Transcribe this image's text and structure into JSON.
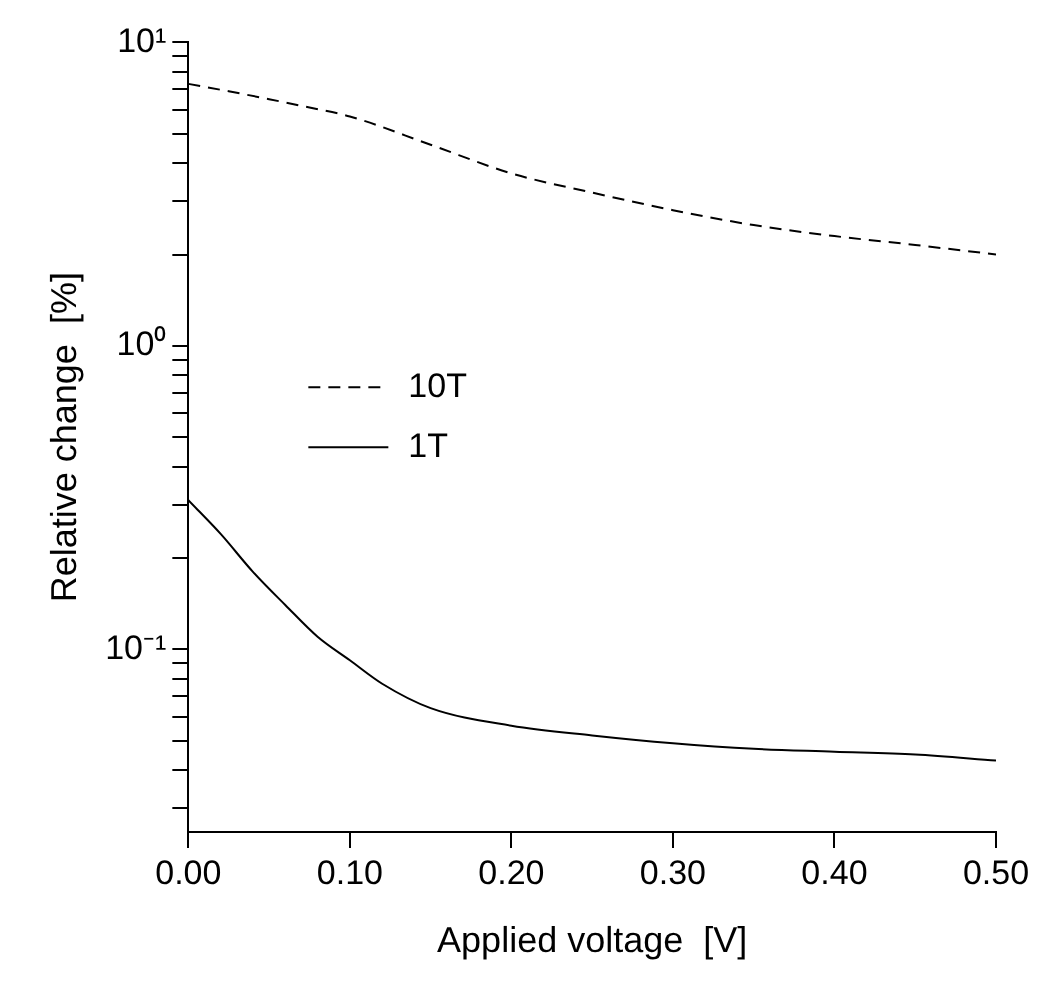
{
  "chart_data": {
    "type": "line",
    "xlabel": "Applied voltage  [V]",
    "ylabel": "Relative change  [%]",
    "log": "y",
    "grid": false,
    "legend": "left",
    "marker": "none",
    "xlim": [
      0,
      0.5
    ],
    "xticks": [
      {
        "value": 0,
        "label": "0.00"
      },
      {
        "value": 0.1,
        "label": "0.10"
      },
      {
        "value": 0.2,
        "label": "0.20"
      },
      {
        "value": 0.3,
        "label": "0.30"
      },
      {
        "value": 0.4,
        "label": "0.40"
      },
      {
        "value": 0.5,
        "label": "0.50"
      }
    ],
    "ylim": [
      0.025,
      10
    ],
    "yticks": [
      {
        "value": 0.03,
        "label": null
      },
      {
        "value": 0.04,
        "label": null
      },
      {
        "value": 0.05,
        "label": null
      },
      {
        "value": 0.06,
        "label": null
      },
      {
        "value": 0.07,
        "label": null
      },
      {
        "value": 0.08,
        "label": null
      },
      {
        "value": 0.09,
        "label": null
      },
      {
        "value": 0.1,
        "label": "10⁻¹"
      },
      {
        "value": 0.2,
        "label": null
      },
      {
        "value": 0.3,
        "label": null
      },
      {
        "value": 0.4,
        "label": null
      },
      {
        "value": 0.5,
        "label": null
      },
      {
        "value": 0.6,
        "label": null
      },
      {
        "value": 0.7,
        "label": null
      },
      {
        "value": 0.8,
        "label": null
      },
      {
        "value": 0.9,
        "label": null
      },
      {
        "value": 1,
        "label": "10⁰"
      },
      {
        "value": 2,
        "label": null
      },
      {
        "value": 3,
        "label": null
      },
      {
        "value": 4,
        "label": null
      },
      {
        "value": 5,
        "label": null
      },
      {
        "value": 6,
        "label": null
      },
      {
        "value": 7,
        "label": null
      },
      {
        "value": 8,
        "label": null
      },
      {
        "value": 9,
        "label": null
      },
      {
        "value": 10,
        "label": "10¹"
      }
    ],
    "series": [
      {
        "name": "10T",
        "color": "#000000",
        "line_style": "dashed",
        "x": [
          0,
          0.025,
          0.05,
          0.075,
          0.1,
          0.15,
          0.2,
          0.25,
          0.3,
          0.35,
          0.4,
          0.45,
          0.5
        ],
        "values": [
          7.3,
          6.9,
          6.5,
          6.1,
          5.7,
          4.6,
          3.7,
          3.2,
          2.8,
          2.5,
          2.3,
          2.15,
          2.0
        ]
      },
      {
        "name": "1T",
        "color": "#000000",
        "line_style": "solid",
        "x": [
          0,
          0.02,
          0.04,
          0.06,
          0.08,
          0.1,
          0.12,
          0.15,
          0.2,
          0.25,
          0.3,
          0.35,
          0.4,
          0.45,
          0.5
        ],
        "values": [
          0.31,
          0.24,
          0.18,
          0.14,
          0.11,
          0.092,
          0.077,
          0.064,
          0.056,
          0.052,
          0.049,
          0.047,
          0.046,
          0.045,
          0.043
        ]
      }
    ]
  }
}
